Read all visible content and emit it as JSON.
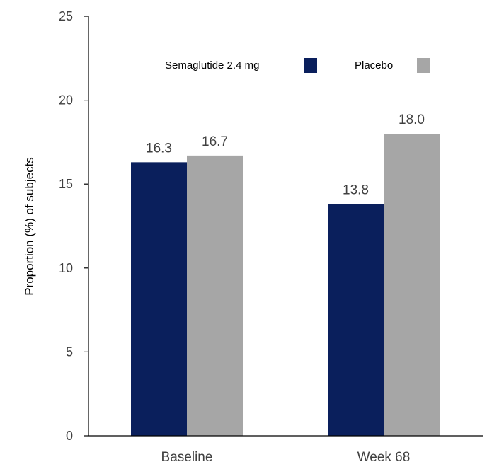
{
  "chart_data": {
    "type": "bar",
    "title": "",
    "xlabel": "",
    "ylabel": "Proportion (%) of subjects",
    "categories": [
      "Baseline",
      "Week 68"
    ],
    "series": [
      {
        "name": "Semaglutide 2.4 mg",
        "values": [
          16.3,
          13.8
        ],
        "labels": [
          "16.3",
          "13.8"
        ],
        "color": "#0a1f5c"
      },
      {
        "name": "Placebo",
        "values": [
          16.7,
          18.0
        ],
        "labels": [
          "16.7",
          "18.0"
        ],
        "color": "#a6a6a6"
      }
    ],
    "ylim": [
      0,
      25
    ],
    "yticks": [
      "0",
      "5",
      "10",
      "15",
      "20",
      "25"
    ],
    "grid": false,
    "legend_position": "top"
  }
}
